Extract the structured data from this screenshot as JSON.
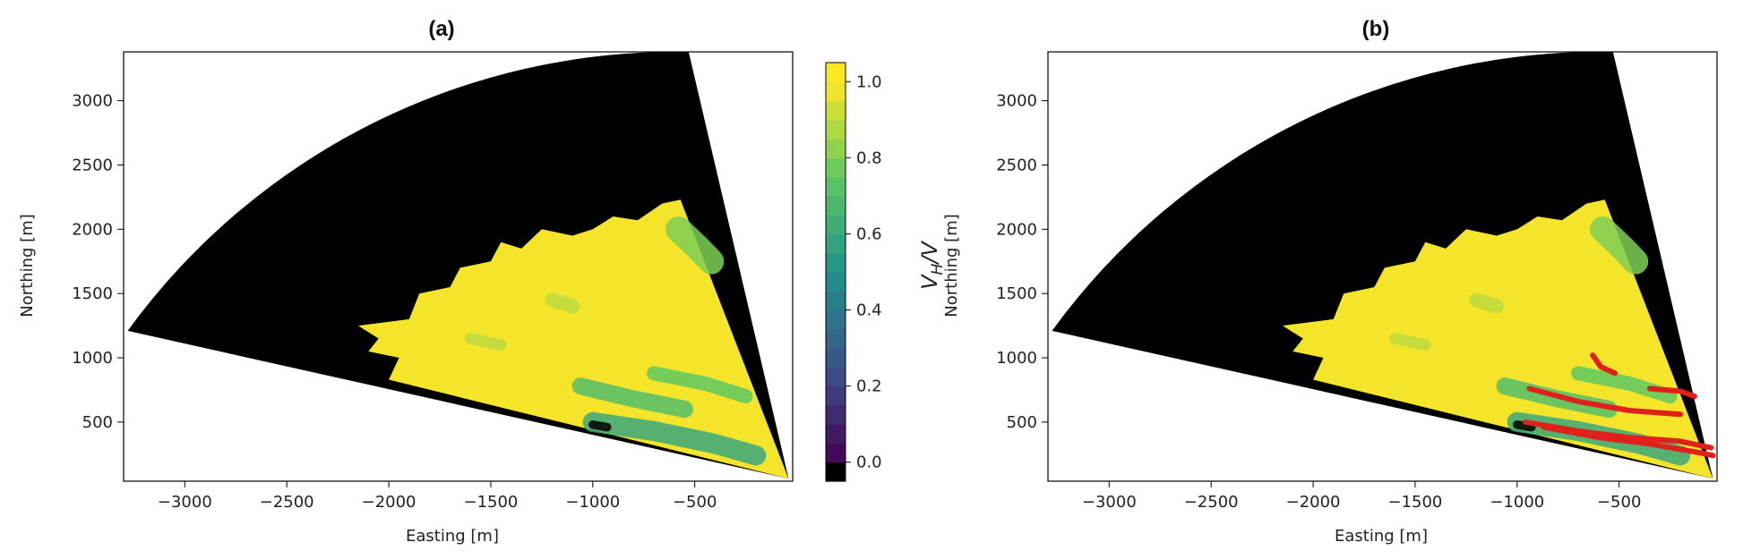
{
  "chart_data": [
    {
      "type": "heatmap",
      "panel_label": "(a)",
      "xlabel": "Easting [m]",
      "ylabel": "Northing [m]",
      "xlim": [
        -3300,
        -20
      ],
      "ylim": [
        40,
        3380
      ],
      "xticks": [
        -3000,
        -2500,
        -2000,
        -1500,
        -1000,
        -500
      ],
      "xtick_labels": [
        "−3000",
        "−2500",
        "−2000",
        "−1500",
        "−1000",
        "−500"
      ],
      "yticks": [
        500,
        1000,
        1500,
        2000,
        2500,
        3000
      ],
      "ytick_labels": [
        "500",
        "1000",
        "1500",
        "2000",
        "2500",
        "3000"
      ],
      "grid": false,
      "colorbar": {
        "label": "V_H/V",
        "label_main": "V",
        "label_sub": "H",
        "label_tail": "/V",
        "range": [
          -0.05,
          1.05
        ],
        "ticks": [
          0.0,
          0.2,
          0.4,
          0.6,
          0.8,
          1.0
        ],
        "tick_labels": [
          "0.0",
          "0.2",
          "0.4",
          "0.6",
          "0.8",
          "1.0"
        ],
        "levels": 22,
        "colormap": "viridis"
      },
      "colors": {
        "masked": "#000000",
        "high": "#f5e52a",
        "mid": "#4ba98b",
        "low": "#2a5f7e",
        "min": "#2b1a4f"
      },
      "sector": {
        "apex": [
          -40,
          60
        ],
        "edge_lower_end": [
          -3280,
          1210
        ],
        "edge_upper_end": [
          -530,
          3380
        ]
      },
      "valid_region": [
        [
          -2000,
          830
        ],
        [
          -1950,
          1000
        ],
        [
          -2100,
          1050
        ],
        [
          -2050,
          1150
        ],
        [
          -2150,
          1250
        ],
        [
          -1900,
          1300
        ],
        [
          -1850,
          1500
        ],
        [
          -1700,
          1550
        ],
        [
          -1650,
          1700
        ],
        [
          -1500,
          1750
        ],
        [
          -1450,
          1900
        ],
        [
          -1350,
          1850
        ],
        [
          -1250,
          2000
        ],
        [
          -1100,
          1950
        ],
        [
          -1000,
          2000
        ],
        [
          -900,
          2100
        ],
        [
          -780,
          2070
        ],
        [
          -660,
          2200
        ],
        [
          -570,
          2230
        ]
      ],
      "features": [
        {
          "kind": "shear_band",
          "level": 0.7,
          "points": [
            [
              -1060,
              780
            ],
            [
              -800,
              680
            ],
            [
              -550,
              600
            ]
          ],
          "width": 60
        },
        {
          "kind": "shear_band",
          "level": 0.6,
          "points": [
            [
              -1000,
              500
            ],
            [
              -700,
              430
            ],
            [
              -400,
              330
            ],
            [
              -200,
              240
            ]
          ],
          "width": 70
        },
        {
          "kind": "shear_band",
          "level": 0.75,
          "points": [
            [
              -700,
              880
            ],
            [
              -450,
              800
            ],
            [
              -250,
              700
            ]
          ],
          "width": 50
        },
        {
          "kind": "shear_band",
          "level": 0.8,
          "points": [
            [
              -580,
              2000
            ],
            [
              -480,
              1850
            ],
            [
              -420,
              1750
            ]
          ],
          "width": 90
        },
        {
          "kind": "low_spot",
          "level": 0.0,
          "points": [
            [
              -1000,
              480
            ],
            [
              -930,
              460
            ]
          ],
          "width": 30
        },
        {
          "kind": "patch",
          "level": 0.9,
          "points": [
            [
              -1200,
              1450
            ],
            [
              -1100,
              1400
            ]
          ],
          "width": 50
        },
        {
          "kind": "patch",
          "level": 0.9,
          "points": [
            [
              -1600,
              1150
            ],
            [
              -1450,
              1100
            ]
          ],
          "width": 40
        }
      ],
      "overlay_lines": []
    },
    {
      "type": "heatmap",
      "panel_label": "(b)",
      "xlabel": "Easting [m]",
      "ylabel": "Northing [m]",
      "xlim": [
        -3300,
        -20
      ],
      "ylim": [
        40,
        3380
      ],
      "xticks": [
        -3000,
        -2500,
        -2000,
        -1500,
        -1000,
        -500
      ],
      "xtick_labels": [
        "−3000",
        "−2500",
        "−2000",
        "−1500",
        "−1000",
        "−500"
      ],
      "yticks": [
        500,
        1000,
        1500,
        2000,
        2500,
        3000
      ],
      "ytick_labels": [
        "500",
        "1000",
        "1500",
        "2000",
        "2500",
        "3000"
      ],
      "grid": false,
      "colors": {
        "masked": "#000000",
        "high": "#f5e52a",
        "mid": "#4ba98b",
        "low": "#2a5f7e",
        "overlay": "#e0201b"
      },
      "sector": {
        "apex": [
          -40,
          60
        ],
        "edge_lower_end": [
          -3280,
          1210
        ],
        "edge_upper_end": [
          -530,
          3380
        ]
      },
      "valid_region": [
        [
          -2000,
          830
        ],
        [
          -1950,
          1000
        ],
        [
          -2100,
          1050
        ],
        [
          -2050,
          1150
        ],
        [
          -2150,
          1250
        ],
        [
          -1900,
          1300
        ],
        [
          -1850,
          1500
        ],
        [
          -1700,
          1550
        ],
        [
          -1650,
          1700
        ],
        [
          -1500,
          1750
        ],
        [
          -1450,
          1900
        ],
        [
          -1350,
          1850
        ],
        [
          -1250,
          2000
        ],
        [
          -1100,
          1950
        ],
        [
          -1000,
          2000
        ],
        [
          -900,
          2100
        ],
        [
          -780,
          2070
        ],
        [
          -660,
          2200
        ],
        [
          -570,
          2230
        ]
      ],
      "features": [
        {
          "kind": "shear_band",
          "level": 0.7,
          "points": [
            [
              -1060,
              780
            ],
            [
              -800,
              680
            ],
            [
              -550,
              600
            ]
          ],
          "width": 60
        },
        {
          "kind": "shear_band",
          "level": 0.6,
          "points": [
            [
              -1000,
              500
            ],
            [
              -700,
              430
            ],
            [
              -400,
              330
            ],
            [
              -200,
              240
            ]
          ],
          "width": 70
        },
        {
          "kind": "shear_band",
          "level": 0.75,
          "points": [
            [
              -700,
              880
            ],
            [
              -450,
              800
            ],
            [
              -250,
              700
            ]
          ],
          "width": 50
        },
        {
          "kind": "shear_band",
          "level": 0.8,
          "points": [
            [
              -580,
              2000
            ],
            [
              -480,
              1850
            ],
            [
              -420,
              1750
            ]
          ],
          "width": 90
        },
        {
          "kind": "low_spot",
          "level": 0.0,
          "points": [
            [
              -1000,
              480
            ],
            [
              -930,
              460
            ]
          ],
          "width": 30
        },
        {
          "kind": "patch",
          "level": 0.9,
          "points": [
            [
              -1200,
              1450
            ],
            [
              -1100,
              1400
            ]
          ],
          "width": 50
        },
        {
          "kind": "patch",
          "level": 0.9,
          "points": [
            [
              -1600,
              1150
            ],
            [
              -1450,
              1100
            ]
          ],
          "width": 40
        }
      ],
      "overlay_lines": [
        {
          "points": [
            [
              -940,
              760
            ],
            [
              -700,
              660
            ],
            [
              -450,
              590
            ],
            [
              -200,
              560
            ]
          ]
        },
        {
          "points": [
            [
              -960,
              500
            ],
            [
              -700,
              430
            ],
            [
              -450,
              380
            ],
            [
              -200,
              350
            ],
            [
              -50,
              300
            ]
          ]
        },
        {
          "points": [
            [
              -870,
              460
            ],
            [
              -600,
              380
            ],
            [
              -350,
              330
            ],
            [
              -100,
              260
            ],
            [
              -40,
              240
            ]
          ]
        },
        {
          "points": [
            [
              -630,
              1020
            ],
            [
              -590,
              930
            ],
            [
              -520,
              880
            ]
          ]
        },
        {
          "points": [
            [
              -350,
              760
            ],
            [
              -200,
              740
            ],
            [
              -130,
              700
            ]
          ]
        }
      ]
    }
  ]
}
